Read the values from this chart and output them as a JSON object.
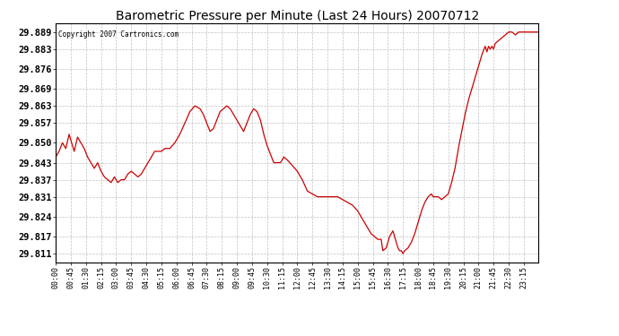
{
  "title": "Barometric Pressure per Minute (Last 24 Hours) 20070712",
  "copyright": "Copyright 2007 Cartronics.com",
  "line_color": "#cc0000",
  "background_color": "#ffffff",
  "plot_bg_color": "#ffffff",
  "grid_color": "#c0c0c0",
  "ylim": [
    29.808,
    29.892
  ],
  "yticks": [
    29.811,
    29.817,
    29.824,
    29.831,
    29.837,
    29.843,
    29.85,
    29.857,
    29.863,
    29.869,
    29.876,
    29.883,
    29.889
  ],
  "xtick_labels": [
    "00:00",
    "00:45",
    "01:30",
    "02:15",
    "03:00",
    "03:45",
    "04:30",
    "05:15",
    "06:00",
    "06:45",
    "07:30",
    "08:15",
    "09:00",
    "09:45",
    "10:30",
    "11:15",
    "12:00",
    "12:45",
    "13:30",
    "14:15",
    "15:00",
    "15:45",
    "16:30",
    "17:15",
    "18:00",
    "18:45",
    "19:30",
    "20:15",
    "21:00",
    "21:45",
    "22:30",
    "23:15"
  ],
  "num_minutes": 1440,
  "key_points": [
    [
      0,
      29.845
    ],
    [
      10,
      29.847
    ],
    [
      20,
      29.85
    ],
    [
      30,
      29.848
    ],
    [
      40,
      29.853
    ],
    [
      50,
      29.849
    ],
    [
      55,
      29.847
    ],
    [
      65,
      29.852
    ],
    [
      75,
      29.85
    ],
    [
      85,
      29.848
    ],
    [
      95,
      29.845
    ],
    [
      105,
      29.843
    ],
    [
      115,
      29.841
    ],
    [
      125,
      29.843
    ],
    [
      135,
      29.84
    ],
    [
      145,
      29.838
    ],
    [
      155,
      29.837
    ],
    [
      165,
      29.836
    ],
    [
      175,
      29.838
    ],
    [
      185,
      29.836
    ],
    [
      195,
      29.837
    ],
    [
      205,
      29.837
    ],
    [
      215,
      29.839
    ],
    [
      225,
      29.84
    ],
    [
      235,
      29.839
    ],
    [
      245,
      29.838
    ],
    [
      255,
      29.839
    ],
    [
      265,
      29.841
    ],
    [
      275,
      29.843
    ],
    [
      285,
      29.845
    ],
    [
      295,
      29.847
    ],
    [
      305,
      29.847
    ],
    [
      315,
      29.847
    ],
    [
      325,
      29.848
    ],
    [
      340,
      29.848
    ],
    [
      355,
      29.85
    ],
    [
      370,
      29.853
    ],
    [
      385,
      29.857
    ],
    [
      400,
      29.861
    ],
    [
      415,
      29.863
    ],
    [
      430,
      29.862
    ],
    [
      440,
      29.86
    ],
    [
      450,
      29.857
    ],
    [
      460,
      29.854
    ],
    [
      470,
      29.855
    ],
    [
      480,
      29.858
    ],
    [
      490,
      29.861
    ],
    [
      500,
      29.862
    ],
    [
      510,
      29.863
    ],
    [
      520,
      29.862
    ],
    [
      530,
      29.86
    ],
    [
      540,
      29.858
    ],
    [
      550,
      29.856
    ],
    [
      560,
      29.854
    ],
    [
      570,
      29.857
    ],
    [
      580,
      29.86
    ],
    [
      590,
      29.862
    ],
    [
      600,
      29.861
    ],
    [
      610,
      29.858
    ],
    [
      620,
      29.853
    ],
    [
      630,
      29.849
    ],
    [
      640,
      29.846
    ],
    [
      650,
      29.843
    ],
    [
      660,
      29.843
    ],
    [
      670,
      29.843
    ],
    [
      680,
      29.845
    ],
    [
      690,
      29.844
    ],
    [
      705,
      29.842
    ],
    [
      720,
      29.84
    ],
    [
      735,
      29.837
    ],
    [
      750,
      29.833
    ],
    [
      765,
      29.832
    ],
    [
      780,
      29.831
    ],
    [
      795,
      29.831
    ],
    [
      810,
      29.831
    ],
    [
      825,
      29.831
    ],
    [
      840,
      29.831
    ],
    [
      855,
      29.83
    ],
    [
      870,
      29.829
    ],
    [
      885,
      29.828
    ],
    [
      900,
      29.826
    ],
    [
      910,
      29.824
    ],
    [
      920,
      29.822
    ],
    [
      930,
      29.82
    ],
    [
      940,
      29.818
    ],
    [
      950,
      29.817
    ],
    [
      960,
      29.816
    ],
    [
      970,
      29.816
    ],
    [
      975,
      29.812
    ],
    [
      985,
      29.813
    ],
    [
      995,
      29.817
    ],
    [
      1005,
      29.819
    ],
    [
      1010,
      29.817
    ],
    [
      1015,
      29.815
    ],
    [
      1020,
      29.813
    ],
    [
      1025,
      29.812
    ],
    [
      1030,
      29.812
    ],
    [
      1035,
      29.811
    ],
    [
      1040,
      29.812
    ],
    [
      1050,
      29.813
    ],
    [
      1060,
      29.815
    ],
    [
      1070,
      29.818
    ],
    [
      1080,
      29.822
    ],
    [
      1090,
      29.826
    ],
    [
      1100,
      29.829
    ],
    [
      1110,
      29.831
    ],
    [
      1120,
      29.832
    ],
    [
      1125,
      29.831
    ],
    [
      1130,
      29.831
    ],
    [
      1140,
      29.831
    ],
    [
      1150,
      29.83
    ],
    [
      1160,
      29.831
    ],
    [
      1170,
      29.832
    ],
    [
      1180,
      29.836
    ],
    [
      1190,
      29.841
    ],
    [
      1200,
      29.848
    ],
    [
      1210,
      29.854
    ],
    [
      1220,
      29.86
    ],
    [
      1230,
      29.865
    ],
    [
      1240,
      29.869
    ],
    [
      1250,
      29.873
    ],
    [
      1260,
      29.877
    ],
    [
      1270,
      29.881
    ],
    [
      1280,
      29.884
    ],
    [
      1285,
      29.882
    ],
    [
      1290,
      29.884
    ],
    [
      1295,
      29.883
    ],
    [
      1300,
      29.884
    ],
    [
      1305,
      29.883
    ],
    [
      1310,
      29.885
    ],
    [
      1320,
      29.886
    ],
    [
      1330,
      29.887
    ],
    [
      1340,
      29.888
    ],
    [
      1350,
      29.889
    ],
    [
      1360,
      29.889
    ],
    [
      1370,
      29.888
    ],
    [
      1380,
      29.889
    ],
    [
      1390,
      29.889
    ],
    [
      1400,
      29.889
    ],
    [
      1410,
      29.889
    ],
    [
      1420,
      29.889
    ],
    [
      1430,
      29.889
    ],
    [
      1439,
      29.889
    ]
  ]
}
